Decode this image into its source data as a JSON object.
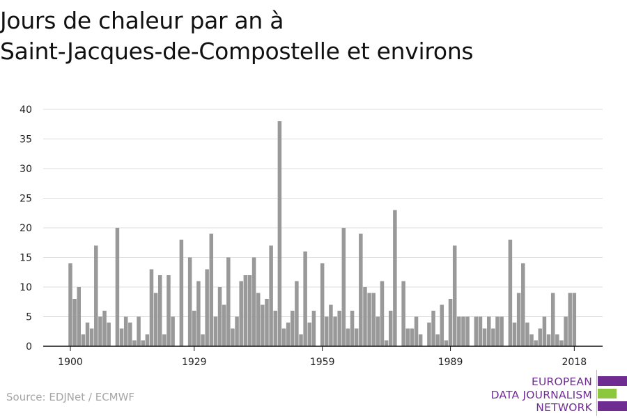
{
  "header": {
    "title_line1": "Jours de chaleur par an à",
    "title_line2": "Saint-Jacques-de-Compostelle et environs"
  },
  "source": "Source: EDJNet / ECMWF",
  "logo": {
    "line1": "EUROPEAN",
    "line2": "DATA JOURNALISM",
    "line3": "NETWORK",
    "colors": {
      "purple": "#6f2c91",
      "green": "#8dc63f"
    }
  },
  "colors": {
    "bar": "#999999",
    "grid": "#dddddd",
    "axis": "#111111"
  },
  "chart_data": {
    "type": "bar",
    "title": "Jours de chaleur par an à Saint-Jacques-de-Compostelle et environs",
    "xlabel": "",
    "ylabel": "",
    "x_start": 1900,
    "x_end": 2018,
    "ylim": [
      0,
      40
    ],
    "y_ticks": [
      0,
      5,
      10,
      15,
      20,
      25,
      30,
      35,
      40
    ],
    "x_ticks": [
      1900,
      1929,
      1959,
      1989,
      2018
    ],
    "grid": true,
    "legend": "none",
    "values": [
      14,
      8,
      10,
      2,
      4,
      3,
      17,
      5,
      6,
      4,
      0,
      20,
      3,
      5,
      4,
      1,
      5,
      1,
      2,
      13,
      9,
      12,
      2,
      12,
      5,
      0,
      18,
      0,
      15,
      6,
      11,
      2,
      13,
      19,
      5,
      10,
      7,
      15,
      3,
      5,
      11,
      12,
      12,
      15,
      9,
      7,
      8,
      17,
      6,
      38,
      3,
      4,
      6,
      11,
      2,
      16,
      4,
      6,
      0,
      14,
      5,
      7,
      5,
      6,
      20,
      3,
      6,
      3,
      19,
      10,
      9,
      9,
      5,
      11,
      1,
      6,
      23,
      0,
      11,
      3,
      3,
      5,
      2,
      0,
      4,
      6,
      2,
      7,
      1,
      8,
      17,
      5,
      5,
      5,
      0,
      5,
      5,
      3,
      5,
      3,
      5,
      5,
      0,
      18,
      4,
      9,
      14,
      4,
      2,
      1,
      3,
      5,
      2,
      9,
      2,
      1,
      5,
      9,
      9
    ]
  }
}
